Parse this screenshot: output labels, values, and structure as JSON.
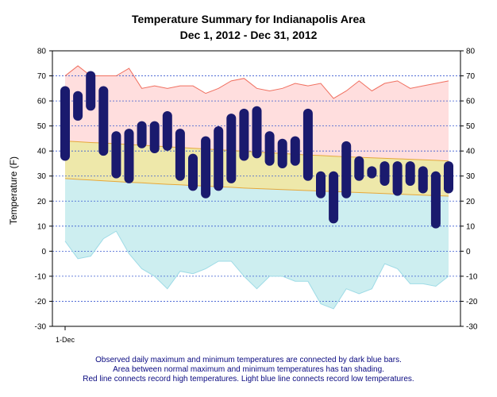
{
  "chart_data": {
    "type": "bar",
    "title": "Temperature Summary for Indianapolis Area",
    "subtitle": "Dec  1, 2012 - Dec 31, 2012",
    "ylabel": "Temperature (F)",
    "xlabel": "",
    "x_tick_label": "1-Dec",
    "ylim": [
      -30,
      80
    ],
    "yticks": [
      -30,
      -20,
      -10,
      0,
      10,
      20,
      30,
      40,
      50,
      60,
      70,
      80
    ],
    "grid": true,
    "days": [
      1,
      2,
      3,
      4,
      5,
      6,
      7,
      8,
      9,
      10,
      11,
      12,
      13,
      14,
      15,
      16,
      17,
      18,
      19,
      20,
      21,
      22,
      23,
      24,
      25,
      26,
      27,
      28,
      29,
      30,
      31
    ],
    "observed_max": [
      64,
      62,
      70,
      64,
      46,
      47,
      50,
      50,
      54,
      47,
      37,
      44,
      48,
      53,
      55,
      56,
      46,
      43,
      44,
      55,
      30,
      30,
      42,
      36,
      32,
      34,
      34,
      34,
      32,
      30,
      34
    ],
    "observed_min": [
      38,
      54,
      58,
      40,
      31,
      29,
      43,
      41,
      42,
      30,
      26,
      23,
      26,
      29,
      38,
      39,
      36,
      35,
      36,
      30,
      23,
      13,
      23,
      30,
      31,
      28,
      24,
      28,
      25,
      11,
      25
    ],
    "normal_max": [
      44,
      43.7,
      43.4,
      43.2,
      42.9,
      42.6,
      42.3,
      42.0,
      41.7,
      41.4,
      41.1,
      40.8,
      40.5,
      40.2,
      39.9,
      39.6,
      39.3,
      39.0,
      38.7,
      38.4,
      38.2,
      37.9,
      37.7,
      37.5,
      37.3,
      37.1,
      36.9,
      36.7,
      36.5,
      36.3,
      36
    ],
    "normal_min": [
      29,
      28.7,
      28.4,
      28.1,
      27.8,
      27.5,
      27.3,
      27.0,
      26.7,
      26.5,
      26.2,
      26.0,
      25.7,
      25.5,
      25.2,
      25.0,
      24.8,
      24.6,
      24.4,
      24.2,
      24.0,
      23.8,
      23.6,
      23.4,
      23.2,
      23.0,
      22.8,
      22.6,
      22.4,
      22.2,
      22
    ],
    "record_high": [
      70,
      74,
      70,
      70,
      70,
      73,
      65,
      66,
      65,
      66,
      66,
      63,
      65,
      68,
      69,
      65,
      64,
      65,
      67,
      66,
      67,
      61,
      64,
      68,
      64,
      67,
      68,
      65,
      66,
      67,
      68
    ],
    "record_low": [
      4,
      -3,
      -2,
      5,
      8,
      -1,
      -7,
      -10,
      -15,
      -8,
      -9,
      -7,
      -4,
      -4,
      -10,
      -15,
      -10,
      -10,
      -12,
      -12,
      -21,
      -23,
      -15,
      -17,
      -15,
      -5,
      -7,
      -13,
      -13,
      -14,
      -10
    ],
    "colors": {
      "observed": "#1a1a6e",
      "normal_fill": "#eee8aa",
      "normal_line": "#e6a83a",
      "record_high_line": "#f07060",
      "record_high_fill": "#ffdede",
      "record_low_line": "#9edbe6",
      "record_low_fill": "#cdeef0",
      "grid": "#3a5ad0"
    }
  },
  "caption": {
    "line1": "Observed daily maximum and minimum temperatures are connected by dark blue bars.",
    "line2": "Area between normal maximum and minimum temperatures has tan shading.",
    "line3": "Red line connects record high temperatures. Light blue line connects record low temperatures."
  }
}
